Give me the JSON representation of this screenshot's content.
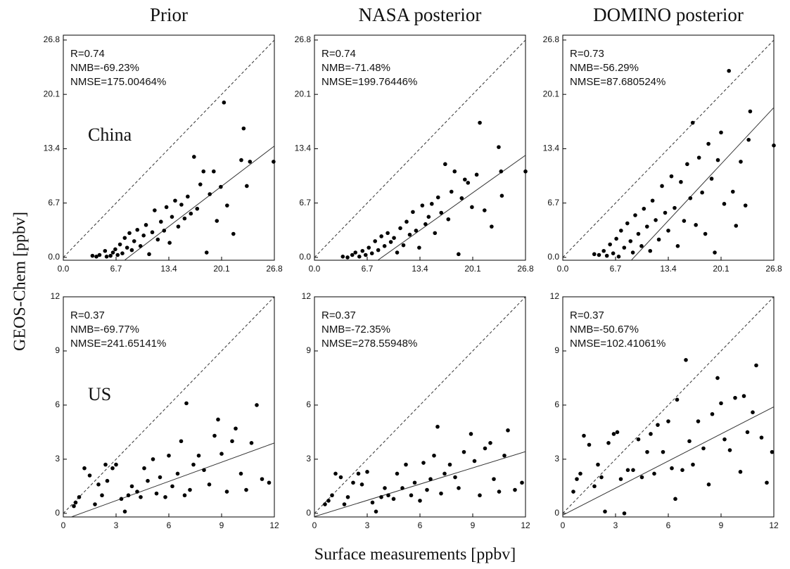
{
  "axis_labels": {
    "x": "Surface measurements [ppbv]",
    "y": "GEOS-Chem [ppbv]"
  },
  "chart_data": [
    {
      "type": "scatter",
      "title": "Prior",
      "label": "China",
      "annotations": [
        "R=0.74",
        "NMB=-69.23%",
        "NMSE=175.00464%"
      ],
      "x": [
        3.7,
        4.2,
        4.6,
        5.3,
        5.5,
        6.0,
        6.3,
        6.6,
        6.9,
        7.2,
        7.5,
        7.8,
        8.1,
        8.4,
        8.7,
        9.0,
        9.4,
        9.8,
        10.2,
        10.5,
        10.9,
        11.3,
        11.6,
        12.0,
        12.4,
        12.8,
        13.1,
        13.5,
        13.8,
        14.2,
        14.6,
        15.0,
        15.4,
        15.8,
        16.2,
        16.6,
        17.0,
        17.4,
        17.8,
        18.2,
        18.6,
        19.1,
        19.5,
        20.0,
        20.4,
        20.8,
        21.6,
        22.6,
        22.9,
        23.3,
        23.7,
        26.7
      ],
      "values": [
        0.2,
        0.1,
        0.3,
        0.8,
        0.1,
        0.2,
        0.6,
        1.0,
        0.3,
        1.6,
        0.5,
        2.4,
        1.2,
        3.0,
        0.9,
        2.0,
        3.4,
        1.4,
        2.7,
        4.0,
        0.4,
        3.1,
        5.8,
        2.2,
        4.4,
        3.3,
        6.2,
        1.8,
        5.0,
        7.0,
        3.8,
        6.5,
        4.8,
        7.5,
        5.4,
        12.4,
        6.0,
        9.0,
        10.6,
        0.6,
        7.8,
        10.6,
        4.5,
        8.7,
        19.1,
        6.4,
        2.9,
        12.0,
        15.9,
        8.8,
        11.8,
        11.8
      ],
      "fit": {
        "slope": 0.74,
        "intercept": -6.1
      },
      "xlim": [
        0,
        26.8
      ],
      "ylim": [
        -0.35,
        27.4
      ],
      "xticks": [
        {
          "value": 0,
          "label": "0.0"
        },
        6.7,
        13.4,
        20.1,
        26.8
      ],
      "yticks": [
        {
          "value": 0,
          "label": "0.0"
        },
        6.7,
        13.4,
        20.1,
        26.8
      ]
    },
    {
      "type": "scatter",
      "title": "NASA posterior",
      "annotations": [
        "R=0.74",
        "NMB=-71.48%",
        "NMSE=199.76446%"
      ],
      "x": [
        3.6,
        4.2,
        4.8,
        5.2,
        5.7,
        6.1,
        6.5,
        6.9,
        7.3,
        7.7,
        8.1,
        8.5,
        8.9,
        9.3,
        9.7,
        10.1,
        10.5,
        10.9,
        11.3,
        11.7,
        12.1,
        12.5,
        12.9,
        13.3,
        13.7,
        14.1,
        14.5,
        14.9,
        15.3,
        15.7,
        16.1,
        16.6,
        17.0,
        17.4,
        17.8,
        18.3,
        18.7,
        19.1,
        19.5,
        20.0,
        20.6,
        21.0,
        21.6,
        22.5,
        23.4,
        23.7,
        23.8,
        26.8
      ],
      "values": [
        0.1,
        0.0,
        0.3,
        0.6,
        0.1,
        0.8,
        0.3,
        1.2,
        0.5,
        2.0,
        0.9,
        2.6,
        1.4,
        3.0,
        1.9,
        2.4,
        0.6,
        3.6,
        1.5,
        4.4,
        2.8,
        5.6,
        3.3,
        1.2,
        6.4,
        4.1,
        5.0,
        6.6,
        3.0,
        7.4,
        5.5,
        11.5,
        4.7,
        8.1,
        10.6,
        0.4,
        7.3,
        9.6,
        9.2,
        6.2,
        10.2,
        16.6,
        5.8,
        3.8,
        13.6,
        10.6,
        7.6,
        10.6
      ],
      "fit": {
        "slope": 0.69,
        "intercept": -5.9
      },
      "xlim": [
        0,
        26.8
      ],
      "ylim": [
        -0.35,
        27.4
      ],
      "xticks": [
        {
          "value": 0,
          "label": "0.0"
        },
        6.7,
        13.4,
        20.1,
        26.8
      ],
      "yticks": [
        {
          "value": 0,
          "label": "0.0"
        },
        6.7,
        13.4,
        20.1,
        26.8
      ]
    },
    {
      "type": "scatter",
      "title": "DOMINO posterior",
      "annotations": [
        "R=0.73",
        "NMB=-56.29%",
        "NMSE=87.680524%"
      ],
      "x": [
        4.0,
        4.6,
        5.2,
        5.6,
        6.0,
        6.4,
        6.8,
        7.1,
        7.4,
        7.8,
        8.2,
        8.6,
        8.9,
        9.2,
        9.6,
        10.0,
        10.3,
        10.7,
        11.1,
        11.4,
        11.8,
        12.2,
        12.6,
        13.0,
        13.4,
        13.8,
        14.2,
        14.6,
        15.0,
        15.4,
        15.8,
        16.2,
        16.5,
        16.9,
        17.3,
        17.7,
        18.1,
        18.5,
        18.9,
        19.3,
        19.7,
        20.1,
        20.5,
        21.1,
        21.6,
        22.0,
        22.6,
        23.2,
        23.6,
        23.8,
        26.8
      ],
      "values": [
        0.4,
        0.3,
        0.8,
        0.2,
        1.6,
        0.5,
        2.3,
        0.1,
        3.3,
        1.2,
        4.2,
        2.0,
        0.6,
        5.2,
        2.9,
        1.4,
        6.0,
        3.8,
        0.8,
        7.0,
        4.6,
        2.2,
        8.8,
        5.5,
        3.3,
        10.0,
        6.1,
        1.4,
        9.3,
        4.5,
        11.5,
        7.3,
        16.6,
        4.0,
        12.3,
        8.0,
        2.9,
        14.0,
        9.7,
        0.6,
        12.0,
        15.4,
        6.6,
        23.0,
        8.1,
        3.9,
        11.8,
        6.4,
        14.5,
        18.0,
        13.8
      ],
      "fit": {
        "slope": 1.04,
        "intercept": -9.4
      },
      "xlim": [
        0,
        26.8
      ],
      "ylim": [
        -0.35,
        27.4
      ],
      "xticks": [
        {
          "value": 0,
          "label": "0.0"
        },
        6.7,
        13.4,
        20.1,
        26.8
      ],
      "yticks": [
        {
          "value": 0,
          "label": "0.0"
        },
        6.7,
        13.4,
        20.1,
        26.8
      ]
    },
    {
      "type": "scatter",
      "label": "US",
      "annotations": [
        "R=0.37",
        "NMB=-69.77%",
        "NMSE=241.65141%"
      ],
      "x": [
        0.6,
        0.7,
        0.9,
        1.2,
        1.5,
        1.8,
        2.0,
        2.2,
        2.4,
        2.5,
        2.8,
        3.0,
        3.3,
        3.5,
        3.7,
        3.9,
        4.2,
        4.4,
        4.6,
        4.8,
        5.1,
        5.3,
        5.5,
        5.8,
        6.0,
        6.2,
        6.5,
        6.7,
        6.9,
        7.0,
        7.2,
        7.4,
        7.7,
        8.0,
        8.3,
        8.6,
        8.8,
        9.0,
        9.3,
        9.6,
        9.8,
        10.1,
        10.4,
        10.7,
        11.0,
        11.3,
        11.7
      ],
      "values": [
        0.4,
        0.6,
        0.9,
        2.5,
        2.1,
        0.5,
        1.6,
        1.0,
        2.7,
        1.8,
        2.5,
        2.7,
        0.8,
        0.1,
        1.0,
        1.5,
        1.2,
        0.9,
        2.5,
        1.8,
        3.0,
        1.1,
        2.0,
        0.9,
        3.2,
        1.5,
        2.2,
        4.0,
        1.0,
        6.1,
        1.3,
        2.7,
        3.2,
        2.4,
        1.6,
        4.3,
        5.2,
        3.3,
        1.2,
        4.0,
        4.7,
        2.2,
        1.3,
        3.9,
        6.0,
        1.9,
        1.7
      ],
      "fit": {
        "slope": 0.355,
        "intercept": -0.36
      },
      "xlim": [
        0,
        12
      ],
      "ylim": [
        -0.2,
        12
      ],
      "xticks": [
        0,
        3,
        6,
        9,
        12
      ],
      "yticks": [
        0,
        3,
        6,
        9,
        12
      ]
    },
    {
      "type": "scatter",
      "annotations": [
        "R=0.37",
        "NMB=-72.35%",
        "NMSE=278.55948%"
      ],
      "x": [
        0.6,
        0.8,
        1.0,
        1.2,
        1.5,
        1.7,
        1.9,
        2.2,
        2.5,
        2.7,
        3.0,
        3.3,
        3.5,
        3.8,
        4.0,
        4.2,
        4.5,
        4.7,
        5.0,
        5.2,
        5.5,
        5.7,
        6.0,
        6.2,
        6.4,
        6.6,
        6.8,
        7.0,
        7.2,
        7.4,
        7.7,
        8.0,
        8.2,
        8.5,
        8.9,
        9.1,
        9.4,
        9.7,
        10.0,
        10.2,
        10.5,
        10.8,
        11.0,
        11.4,
        11.8
      ],
      "values": [
        0.5,
        0.7,
        1.0,
        2.2,
        2.0,
        0.5,
        0.9,
        1.7,
        2.2,
        1.6,
        2.3,
        0.6,
        0.1,
        0.9,
        1.4,
        1.0,
        0.8,
        2.2,
        1.4,
        2.7,
        1.0,
        1.7,
        0.7,
        2.8,
        1.3,
        1.9,
        3.2,
        4.8,
        1.1,
        2.2,
        2.7,
        2.0,
        1.4,
        3.4,
        4.4,
        2.9,
        1.0,
        3.6,
        3.9,
        1.9,
        1.2,
        3.2,
        4.6,
        1.3,
        1.7
      ],
      "fit": {
        "slope": 0.3,
        "intercept": -0.18
      },
      "xlim": [
        0,
        12
      ],
      "ylim": [
        -0.2,
        12
      ],
      "xticks": [
        0,
        3,
        6,
        9,
        12
      ],
      "yticks": [
        0,
        3,
        6,
        9,
        12
      ]
    },
    {
      "type": "scatter",
      "annotations": [
        "R=0.37",
        "NMB=-50.67%",
        "NMSE=102.41061%"
      ],
      "x": [
        0.6,
        0.8,
        1.0,
        1.2,
        1.5,
        1.8,
        2.0,
        2.2,
        2.4,
        2.6,
        2.9,
        3.1,
        3.3,
        3.5,
        3.7,
        4.0,
        4.3,
        4.5,
        4.8,
        5.0,
        5.2,
        5.4,
        5.7,
        6.0,
        6.2,
        6.4,
        6.5,
        6.8,
        7.0,
        7.2,
        7.4,
        7.7,
        8.0,
        8.3,
        8.5,
        8.8,
        9.0,
        9.2,
        9.5,
        9.8,
        10.1,
        10.3,
        10.5,
        10.8,
        11.0,
        11.3,
        11.6,
        11.9
      ],
      "values": [
        1.2,
        1.9,
        2.2,
        4.3,
        3.8,
        1.5,
        2.7,
        2.0,
        0.1,
        3.9,
        4.4,
        4.5,
        1.9,
        0.0,
        2.4,
        2.4,
        4.1,
        2.0,
        3.4,
        4.4,
        2.2,
        4.9,
        3.4,
        5.1,
        2.5,
        0.8,
        6.3,
        2.4,
        8.5,
        4.0,
        2.7,
        5.1,
        3.6,
        1.6,
        5.5,
        7.5,
        6.1,
        4.1,
        3.5,
        6.4,
        2.3,
        6.5,
        4.5,
        5.6,
        8.2,
        4.2,
        1.7,
        3.4
      ],
      "fit": {
        "slope": 0.5,
        "intercept": -0.1
      },
      "xlim": [
        0,
        12
      ],
      "ylim": [
        -0.2,
        12
      ],
      "xticks": [
        0,
        3,
        6,
        9,
        12
      ],
      "yticks": [
        0,
        3,
        6,
        9,
        12
      ]
    }
  ]
}
